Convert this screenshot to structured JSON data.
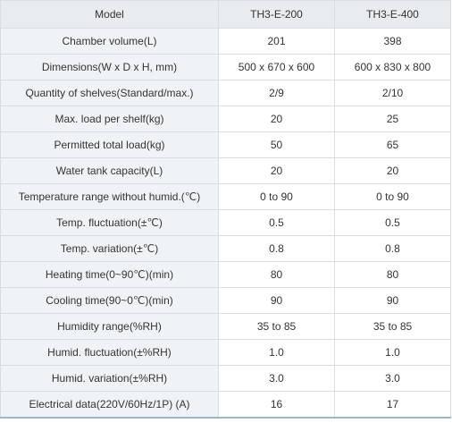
{
  "header": {
    "label": "Model",
    "model_a": "TH3-E-200",
    "model_b": "TH3-E-400"
  },
  "rows": [
    {
      "label": "Chamber volume(L)",
      "a": "201",
      "b": "398"
    },
    {
      "label": "Dimensions(W x D x H, mm)",
      "a": "500 x 670 x 600",
      "b": "600 x 830 x 800"
    },
    {
      "label": "Quantity of shelves(Standard/max.)",
      "a": "2/9",
      "b": "2/10"
    },
    {
      "label": "Max. load per shelf(kg)",
      "a": "20",
      "b": "25"
    },
    {
      "label": "Permitted total load(kg)",
      "a": "50",
      "b": "65"
    },
    {
      "label": "Water tank capacity(L)",
      "a": "20",
      "b": "20"
    },
    {
      "label": "Temperature range without humid.(℃)",
      "a": "0 to 90",
      "b": "0 to 90"
    },
    {
      "label": "Temp. fluctuation(±℃)",
      "a": "0.5",
      "b": "0.5"
    },
    {
      "label": "Temp. variation(±℃)",
      "a": "0.8",
      "b": "0.8"
    },
    {
      "label": "Heating time(0~90℃)(min)",
      "a": "80",
      "b": "80"
    },
    {
      "label": "Cooling time(90~0℃)(min)",
      "a": "90",
      "b": "90"
    },
    {
      "label": "Humidity range(%RH)",
      "a": "35 to 85",
      "b": "35 to 85"
    },
    {
      "label": "Humid. fluctuation(±%RH)",
      "a": "1.0",
      "b": "1.0"
    },
    {
      "label": "Humid. variation(±%RH)",
      "a": "3.0",
      "b": "3.0"
    },
    {
      "label": "Electrical data(220V/60Hz/1P) (A)",
      "a": "16",
      "b": "17"
    }
  ]
}
